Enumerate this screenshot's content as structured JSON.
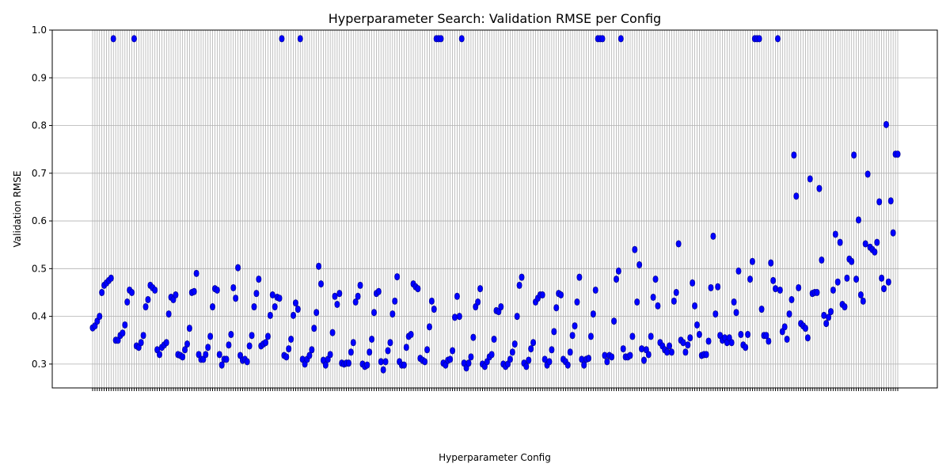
{
  "chart_data": {
    "type": "scatter",
    "title": "Hyperparameter Search: Validation RMSE per Config",
    "xlabel": "Hyperparameter Config",
    "ylabel": "Validation RMSE",
    "ylim": [
      0.25,
      1.0
    ],
    "yticks": [
      0.3,
      0.4,
      0.5,
      0.6,
      0.7,
      0.8,
      0.9,
      1.0
    ],
    "ytick_labels": [
      "0.3",
      "0.4",
      "0.5",
      "0.6",
      "0.7",
      "0.8",
      "0.9",
      "1.0"
    ],
    "grid": true,
    "point_color": "#0000ff",
    "x_tick_labels_rotated": true,
    "values": [
      0.376,
      0.38,
      0.39,
      0.4,
      0.45,
      0.465,
      0.47,
      0.475,
      0.48,
      0.982,
      0.35,
      0.35,
      0.36,
      0.365,
      0.382,
      0.43,
      0.455,
      0.45,
      0.982,
      0.338,
      0.335,
      0.345,
      0.36,
      0.42,
      0.435,
      0.465,
      0.46,
      0.455,
      0.33,
      0.32,
      0.335,
      0.34,
      0.345,
      0.405,
      0.44,
      0.435,
      0.445,
      0.32,
      0.318,
      0.315,
      0.33,
      0.342,
      0.375,
      0.45,
      0.452,
      0.49,
      0.32,
      0.31,
      0.31,
      0.32,
      0.335,
      0.358,
      0.42,
      0.458,
      0.455,
      0.32,
      0.298,
      0.31,
      0.31,
      0.34,
      0.362,
      0.46,
      0.438,
      0.502,
      0.318,
      0.308,
      0.31,
      0.305,
      0.338,
      0.36,
      0.42,
      0.448,
      0.478,
      0.338,
      0.342,
      0.345,
      0.358,
      0.402,
      0.445,
      0.42,
      0.44,
      0.438,
      0.982,
      0.318,
      0.315,
      0.332,
      0.352,
      0.402,
      0.428,
      0.415,
      0.982,
      0.31,
      0.3,
      0.31,
      0.318,
      0.33,
      0.375,
      0.408,
      0.505,
      0.468,
      0.308,
      0.298,
      0.31,
      0.32,
      0.366,
      0.442,
      0.425,
      0.448,
      0.302,
      0.3,
      0.302,
      0.302,
      0.325,
      0.345,
      0.43,
      0.442,
      0.465,
      0.3,
      0.295,
      0.298,
      0.325,
      0.352,
      0.408,
      0.448,
      0.452,
      0.305,
      0.288,
      0.305,
      0.328,
      0.345,
      0.405,
      0.432,
      0.483,
      0.305,
      0.298,
      0.298,
      0.335,
      0.358,
      0.362,
      0.468,
      0.462,
      0.458,
      0.312,
      0.308,
      0.305,
      0.33,
      0.378,
      0.432,
      0.415,
      0.982,
      0.982,
      0.982,
      0.302,
      0.298,
      0.308,
      0.31,
      0.328,
      0.398,
      0.442,
      0.4,
      0.982,
      0.302,
      0.292,
      0.302,
      0.315,
      0.356,
      0.42,
      0.43,
      0.458,
      0.3,
      0.295,
      0.305,
      0.315,
      0.32,
      0.352,
      0.412,
      0.41,
      0.42,
      0.3,
      0.295,
      0.3,
      0.31,
      0.325,
      0.342,
      0.4,
      0.465,
      0.482,
      0.302,
      0.295,
      0.308,
      0.332,
      0.345,
      0.43,
      0.438,
      0.445,
      0.445,
      0.31,
      0.298,
      0.305,
      0.33,
      0.368,
      0.418,
      0.448,
      0.445,
      0.31,
      0.305,
      0.298,
      0.325,
      0.36,
      0.38,
      0.43,
      0.482,
      0.31,
      0.298,
      0.31,
      0.312,
      0.358,
      0.405,
      0.455,
      0.982,
      0.982,
      0.982,
      0.318,
      0.305,
      0.318,
      0.315,
      0.39,
      0.478,
      0.495,
      0.982,
      0.332,
      0.315,
      0.315,
      0.318,
      0.358,
      0.54,
      0.43,
      0.508,
      0.332,
      0.308,
      0.33,
      0.32,
      0.358,
      0.44,
      0.478,
      0.422,
      0.345,
      0.338,
      0.33,
      0.325,
      0.338,
      0.325,
      0.432,
      0.45,
      0.552,
      0.35,
      0.345,
      0.325,
      0.34,
      0.355,
      0.47,
      0.422,
      0.382,
      0.362,
      0.318,
      0.32,
      0.32,
      0.348,
      0.46,
      0.568,
      0.405,
      0.462,
      0.36,
      0.35,
      0.355,
      0.345,
      0.355,
      0.345,
      0.43,
      0.408,
      0.495,
      0.362,
      0.34,
      0.335,
      0.362,
      0.478,
      0.515,
      0.982,
      0.982,
      0.982,
      0.415,
      0.36,
      0.36,
      0.348,
      0.512,
      0.475,
      0.458,
      0.982,
      0.455,
      0.368,
      0.378,
      0.352,
      0.405,
      0.435,
      0.738,
      0.652,
      0.46,
      0.385,
      0.38,
      0.375,
      0.355,
      0.688,
      0.448,
      0.45,
      0.45,
      0.668,
      0.518,
      0.402,
      0.385,
      0.398,
      0.41,
      0.455,
      0.572,
      0.472,
      0.555,
      0.425,
      0.42,
      0.48,
      0.52,
      0.515,
      0.738,
      0.478,
      0.602,
      0.445,
      0.432,
      0.552,
      0.698,
      0.545,
      0.54,
      0.535,
      0.555,
      0.64,
      0.48,
      0.458,
      0.802,
      0.472,
      0.642,
      0.575,
      0.74,
      0.74
    ]
  }
}
